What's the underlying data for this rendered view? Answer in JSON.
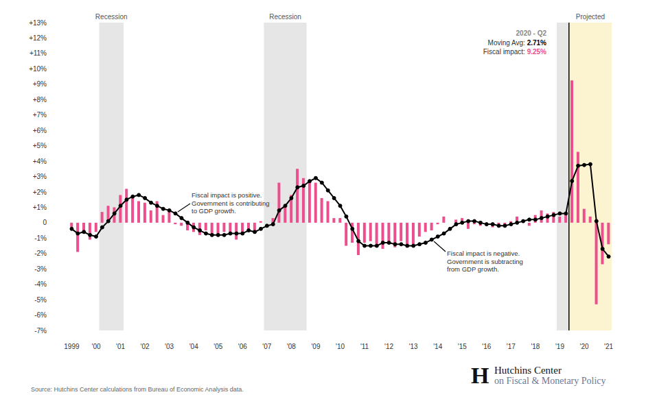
{
  "chart_data": {
    "type": "bar",
    "categories": [
      "1999",
      null,
      null,
      null,
      "'00",
      null,
      null,
      null,
      "'01",
      null,
      null,
      null,
      "'02",
      null,
      null,
      null,
      "'03",
      null,
      null,
      null,
      "'04",
      null,
      null,
      null,
      "'05",
      null,
      null,
      null,
      "'06",
      null,
      null,
      null,
      "'07",
      null,
      null,
      null,
      "'08",
      null,
      null,
      null,
      "'09",
      null,
      null,
      null,
      "'10",
      null,
      null,
      null,
      "'11",
      null,
      null,
      null,
      "'12",
      null,
      null,
      null,
      "'13",
      null,
      null,
      null,
      "'14",
      null,
      null,
      null,
      "'15",
      null,
      null,
      null,
      "'16",
      null,
      null,
      null,
      "'17",
      null,
      null,
      null,
      "'18",
      null,
      null,
      null,
      "'19",
      null,
      null,
      null,
      "'20",
      null,
      null,
      null,
      "'21"
    ],
    "series": [
      {
        "name": "Fiscal impact",
        "type": "bar",
        "color": "#ec4f8e",
        "values": [
          -0.3,
          -1.9,
          -0.6,
          -1.1,
          -0.6,
          0.7,
          1.1,
          1.0,
          1.8,
          2.2,
          1.7,
          1.4,
          1.3,
          0.8,
          1.4,
          0.5,
          0.7,
          -0.1,
          -0.2,
          -0.5,
          -0.6,
          -0.8,
          -0.5,
          -0.9,
          -0.9,
          -0.6,
          -0.7,
          -1.1,
          -0.8,
          -0.4,
          -0.6,
          0.1,
          0.0,
          0.3,
          2.6,
          1.0,
          1.8,
          3.5,
          2.9,
          2.8,
          2.6,
          1.6,
          1.4,
          0.3,
          0.3,
          -1.5,
          -1.3,
          -2.1,
          -1.3,
          -1.2,
          -1.6,
          -1.7,
          -1.4,
          -1.6,
          -1.2,
          -1.6,
          -1.4,
          -0.9,
          -0.6,
          -0.5,
          -0.1,
          0.4,
          0.0,
          0.2,
          0.3,
          -0.4,
          -0.1,
          -0.2,
          -0.1,
          -0.3,
          -0.1,
          -0.2,
          0.1,
          0.4,
          0.2,
          -0.2,
          0.5,
          0.8,
          0.6,
          0.7,
          0.4,
          0.5,
          9.25,
          4.6,
          0.9,
          0.4,
          -5.3,
          -2.7,
          -1.4
        ]
      },
      {
        "name": "Moving Avg",
        "type": "line",
        "color": "#000000",
        "marker": "circle",
        "values": [
          -0.4,
          -0.7,
          -0.6,
          -0.8,
          -0.9,
          -0.3,
          0.1,
          0.6,
          1.1,
          1.5,
          1.7,
          1.8,
          1.6,
          1.3,
          1.1,
          0.9,
          0.8,
          0.6,
          0.3,
          0.0,
          -0.3,
          -0.5,
          -0.7,
          -0.8,
          -0.8,
          -0.8,
          -0.7,
          -0.7,
          -0.7,
          -0.5,
          -0.6,
          -0.4,
          -0.2,
          -0.1,
          0.8,
          1.1,
          1.6,
          2.3,
          2.4,
          2.7,
          2.9,
          2.6,
          2.1,
          1.6,
          1.1,
          0.4,
          -0.4,
          -1.2,
          -1.5,
          -1.5,
          -1.5,
          -1.3,
          -1.3,
          -1.4,
          -1.4,
          -1.5,
          -1.5,
          -1.4,
          -1.3,
          -1.1,
          -0.9,
          -0.7,
          -0.4,
          -0.1,
          0.0,
          0.1,
          0.1,
          0.0,
          -0.1,
          -0.1,
          -0.2,
          -0.2,
          -0.1,
          0.0,
          0.1,
          0.2,
          0.2,
          0.3,
          0.4,
          0.5,
          0.6,
          0.6,
          2.71,
          3.7,
          3.75,
          3.8,
          0.1,
          -1.7,
          -2.2
        ]
      }
    ],
    "ylim": [
      -7,
      13
    ],
    "yticks": [
      {
        "value": -7,
        "label": "-7%"
      },
      {
        "value": -6,
        "label": "-6%"
      },
      {
        "value": -5,
        "label": "-5%"
      },
      {
        "value": -4,
        "label": "-4%"
      },
      {
        "value": -3,
        "label": "-3%"
      },
      {
        "value": -2,
        "label": "-2%"
      },
      {
        "value": -1,
        "label": "-1%"
      },
      0,
      {
        "value": 1,
        "label": "+1%"
      },
      {
        "value": 2,
        "label": "+2%"
      },
      {
        "value": 3,
        "label": "+3%"
      },
      {
        "value": 4,
        "label": "+4%"
      },
      {
        "value": 5,
        "label": "+5%"
      },
      {
        "value": 6,
        "label": "+6%"
      },
      {
        "value": 7,
        "label": "+7%"
      },
      {
        "value": 8,
        "label": "+8%"
      },
      {
        "value": 9,
        "label": "+9%"
      },
      {
        "value": 10,
        "label": "+10%"
      },
      {
        "value": 11,
        "label": "+11%"
      },
      {
        "value": 12,
        "label": "+12%"
      },
      {
        "value": 13,
        "label": "+13%"
      }
    ],
    "grid": false,
    "shaded_regions": [
      {
        "label": "Recession",
        "start": 5,
        "end": 8,
        "color": "#e6e6e6"
      },
      {
        "label": "Recession",
        "start": 32,
        "end": 38,
        "color": "#e6e6e6"
      },
      {
        "start": 80,
        "end": 81,
        "color": "#e6e6e6"
      },
      {
        "label": "Projected",
        "start": 82,
        "end": 88,
        "color": "#fcf3d0"
      }
    ],
    "callout": {
      "title": "2020 - Q2",
      "rows": [
        {
          "label": "Moving Avg:",
          "value": "2.71%"
        },
        {
          "label": "Fiscal impact:",
          "value": "9.25%"
        }
      ]
    },
    "annotations": [
      {
        "text": [
          "Fiscal impact is positive.",
          "Government is contributing",
          "to GDP growth."
        ]
      },
      {
        "text": [
          "Fiscal impact is negative.",
          "Government is subtracting",
          "from GDP growth."
        ]
      }
    ],
    "source": "Source: Hutchins Center calculations from Bureau of Economic Analysis data.",
    "logo": {
      "mark": "H",
      "lines": [
        "Hutchins Center",
        "on Fiscal & Monetary Policy"
      ]
    }
  }
}
